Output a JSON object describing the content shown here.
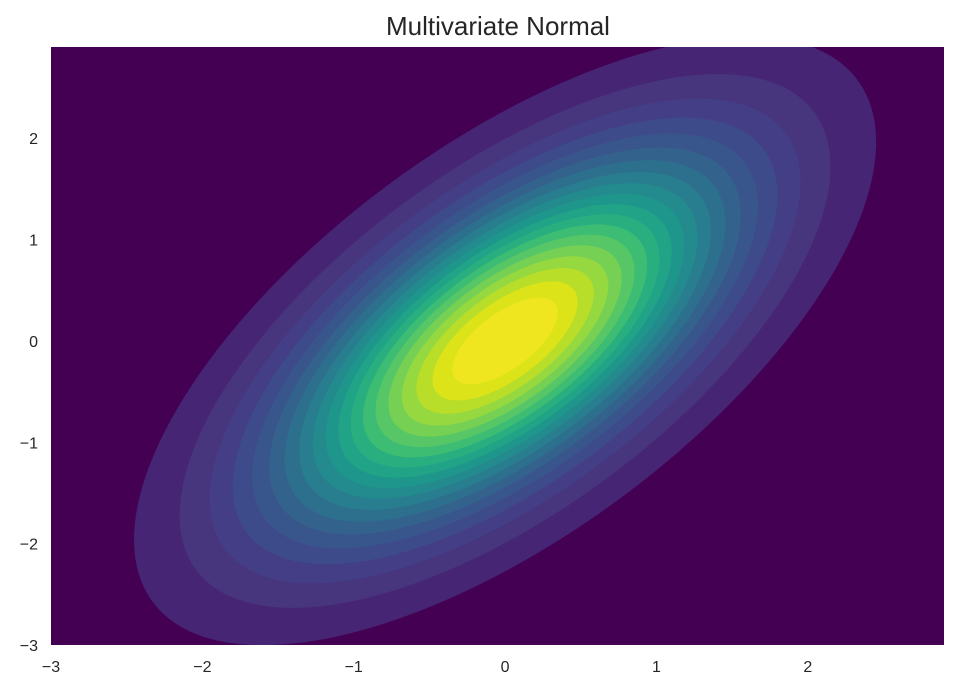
{
  "chart_data": {
    "type": "contour",
    "title": "Multivariate Normal",
    "xlabel": "",
    "ylabel": "",
    "xlim": [
      -3,
      2.9
    ],
    "ylim": [
      -3,
      2.9
    ],
    "x_ticks": [
      -3,
      -2,
      -1,
      0,
      1,
      2
    ],
    "y_ticks": [
      -3,
      -2,
      -1,
      0,
      1,
      2
    ],
    "x_tick_labels": [
      "−3",
      "−2",
      "−1",
      "0",
      "1",
      "2"
    ],
    "y_tick_labels": [
      "−3",
      "−2",
      "−1",
      "0",
      "1",
      "2"
    ],
    "grid": false,
    "colormap": "viridis",
    "distribution": {
      "mean": [
        0,
        0
      ],
      "cov": [
        [
          1.0,
          0.8
        ],
        [
          0.8,
          1.5
        ]
      ]
    },
    "contour_levels": [
      0.0085,
      0.017,
      0.0255,
      0.034,
      0.0425,
      0.051,
      0.0595,
      0.068,
      0.0765,
      0.085,
      0.0935,
      0.102,
      0.1105,
      0.119,
      0.1275,
      0.136,
      0.1445,
      0.153,
      0.1615
    ],
    "level_colors": [
      "#440154",
      "#472575",
      "#47357e",
      "#433e85",
      "#3e4b8a",
      "#39568c",
      "#33638d",
      "#2d708e",
      "#287d8e",
      "#238a8d",
      "#1f968b",
      "#20a386",
      "#29af7f",
      "#3dbc74",
      "#56c667",
      "#75d054",
      "#95d840",
      "#b8de29",
      "#dce319",
      "#f0e61f"
    ]
  }
}
